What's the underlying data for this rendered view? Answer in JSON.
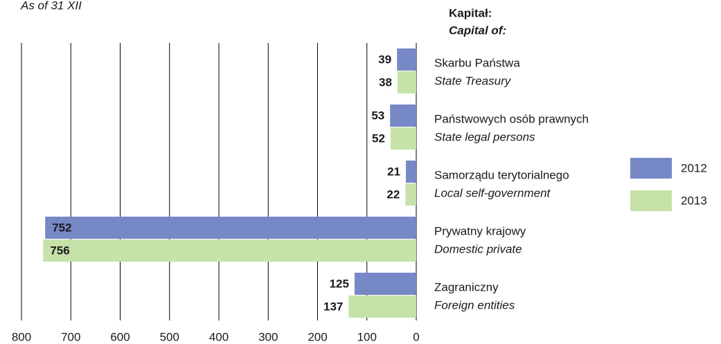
{
  "chart_data": {
    "type": "barh",
    "subtitle": "As of 31 XII",
    "legend_title": "Kapitał:",
    "legend_title_en": "Capital of:",
    "categories": [
      "Skarbu Państwa",
      "Państwowych osób prawnych",
      "Samorządu terytorialnego",
      "Prywatny krajowy",
      "Zagraniczny"
    ],
    "categories_en": [
      "State Treasury",
      "State legal persons",
      "Local self-government",
      "Domestic private",
      "Foreign entities"
    ],
    "series": [
      {
        "name": "2012",
        "color": "#7788c6",
        "values": [
          39,
          53,
          21,
          752,
          125
        ]
      },
      {
        "name": "2013",
        "color": "#c6e2a8",
        "values": [
          38,
          52,
          22,
          756,
          137
        ]
      }
    ],
    "xlim": [
      800,
      0
    ],
    "xticks": [
      800,
      700,
      600,
      500,
      400,
      300,
      200,
      100,
      0
    ],
    "grid": true,
    "legend": "right"
  }
}
